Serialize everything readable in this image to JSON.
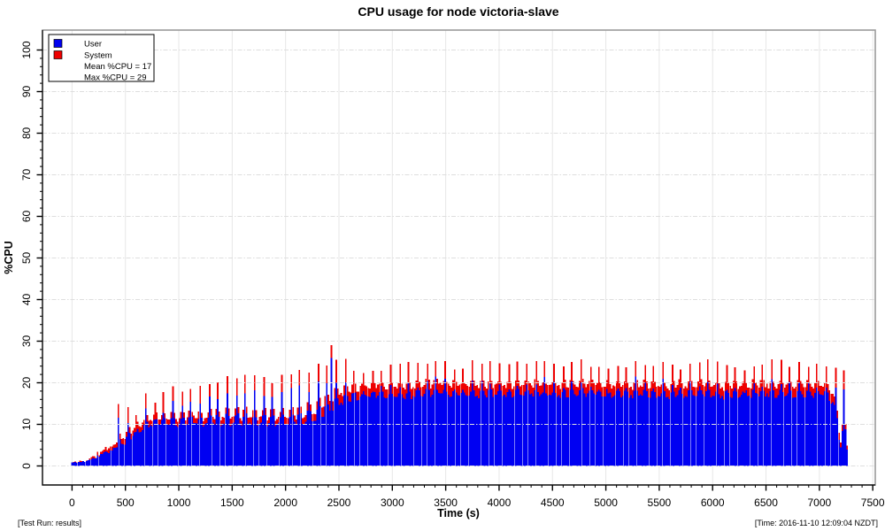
{
  "header": {
    "title": "CPU usage for node victoria-slave"
  },
  "footer": {
    "left": "[Test Run: results]",
    "right": "[Time: 2016-11-10 12:09:04 NZDT]"
  },
  "legend": {
    "user_label": "User",
    "system_label": "System",
    "mean_label": "Mean %CPU = 17",
    "max_label": "Max %CPU = 29",
    "user_color": "#0000ee",
    "system_color": "#ee0000"
  },
  "chart_data": {
    "type": "bar",
    "subtype": "stacked-time-series",
    "title": "CPU usage for node victoria-slave",
    "xlabel": "Time (s)",
    "ylabel": "%CPU",
    "xlim": [
      0,
      7500
    ],
    "ylim": [
      0,
      100
    ],
    "x_ticks": [
      0,
      500,
      1000,
      1500,
      2000,
      2500,
      3000,
      3500,
      4000,
      4500,
      5000,
      5500,
      6000,
      6500,
      7000,
      7500
    ],
    "y_ticks": [
      0,
      10,
      20,
      30,
      40,
      50,
      60,
      70,
      80,
      90,
      100
    ],
    "x_minor_step": 100,
    "y_minor_step": 2,
    "grid": {
      "vertical": "solid",
      "horizontal": "dash-dot",
      "color_vertical": "#e7e7e7",
      "color_horizontal": "#dedede"
    },
    "legend_position": "top-left",
    "series": [
      {
        "name": "User",
        "color": "#0000f2"
      },
      {
        "name": "System",
        "color": "#ee0000"
      }
    ],
    "stats": {
      "mean_cpu": 17,
      "max_cpu": 29
    },
    "sampling": {
      "interval_s": 15,
      "t_start": 0,
      "t_end": 7260
    },
    "base_envelope": [
      [
        0,
        0.8,
        0
      ],
      [
        120,
        1.1,
        0.1
      ],
      [
        200,
        1.8,
        0.3
      ],
      [
        300,
        3,
        0.8
      ],
      [
        400,
        4.2,
        1.1
      ],
      [
        500,
        5.6,
        1.3
      ],
      [
        600,
        7.4,
        1.4
      ],
      [
        700,
        9.2,
        1.5
      ],
      [
        760,
        9.9,
        1.5
      ],
      [
        1200,
        9.9,
        1.5
      ],
      [
        1700,
        10,
        1.6
      ],
      [
        2050,
        10,
        1.6
      ],
      [
        2150,
        10.4,
        1.7
      ],
      [
        2250,
        11,
        1.9
      ],
      [
        2350,
        12,
        2.1
      ],
      [
        2450,
        13.8,
        2.3
      ],
      [
        2550,
        15.2,
        2.4
      ],
      [
        2650,
        16.2,
        2.4
      ],
      [
        2900,
        16.7,
        2.3
      ],
      [
        3100,
        16.3,
        2.4
      ],
      [
        3300,
        16.9,
        2.3
      ],
      [
        3500,
        17.1,
        2.3
      ],
      [
        3700,
        16.5,
        2.4
      ],
      [
        3900,
        17,
        2.3
      ],
      [
        4100,
        16.7,
        2.4
      ],
      [
        4300,
        17.1,
        2.3
      ],
      [
        4500,
        16.6,
        2.4
      ],
      [
        4700,
        16.9,
        2.3
      ],
      [
        4900,
        17.2,
        2.3
      ],
      [
        5100,
        16.5,
        2.4
      ],
      [
        5300,
        16.9,
        2.3
      ],
      [
        5500,
        16.3,
        2.4
      ],
      [
        5700,
        16.7,
        2.3
      ],
      [
        5900,
        17,
        2.3
      ],
      [
        6100,
        16.4,
        2.4
      ],
      [
        6300,
        16.8,
        2.3
      ],
      [
        6500,
        17,
        2.3
      ],
      [
        6700,
        16.5,
        2.4
      ],
      [
        6900,
        16.9,
        2.3
      ],
      [
        7050,
        16.7,
        2.3
      ],
      [
        7130,
        15,
        2.2
      ],
      [
        7170,
        8.5,
        1.8
      ],
      [
        7200,
        4.5,
        1.4
      ],
      [
        7230,
        5.5,
        1.8
      ],
      [
        7260,
        4,
        1.3
      ]
    ],
    "spikes": {
      "start_s": 435,
      "period_s": 85,
      "half_width_s": 7.5,
      "height_keypoints": [
        [
          435,
          15
        ],
        [
          600,
          13
        ],
        [
          700,
          17
        ],
        [
          800,
          16
        ],
        [
          900,
          18
        ],
        [
          1100,
          19
        ],
        [
          1300,
          20
        ],
        [
          1500,
          22
        ],
        [
          1700,
          21
        ],
        [
          1900,
          21
        ],
        [
          2100,
          22
        ],
        [
          2300,
          24
        ],
        [
          2500,
          26
        ],
        [
          2700,
          23
        ],
        [
          3000,
          24
        ],
        [
          3300,
          25
        ],
        [
          3600,
          24
        ],
        [
          3900,
          26
        ],
        [
          4200,
          25
        ],
        [
          4500,
          24
        ],
        [
          4800,
          25
        ],
        [
          5100,
          24
        ],
        [
          5400,
          25
        ],
        [
          5700,
          24
        ],
        [
          6000,
          25
        ],
        [
          6300,
          24
        ],
        [
          6600,
          25
        ],
        [
          6900,
          24
        ],
        [
          7100,
          23
        ]
      ],
      "spike_red_tip": 2.5
    },
    "special_spikes": [
      [
        2430,
        29
      ]
    ],
    "noise": {
      "seed": 11,
      "user_amp": 1.0,
      "sys_amp": 0.7,
      "spike_amp": 2.0
    }
  }
}
